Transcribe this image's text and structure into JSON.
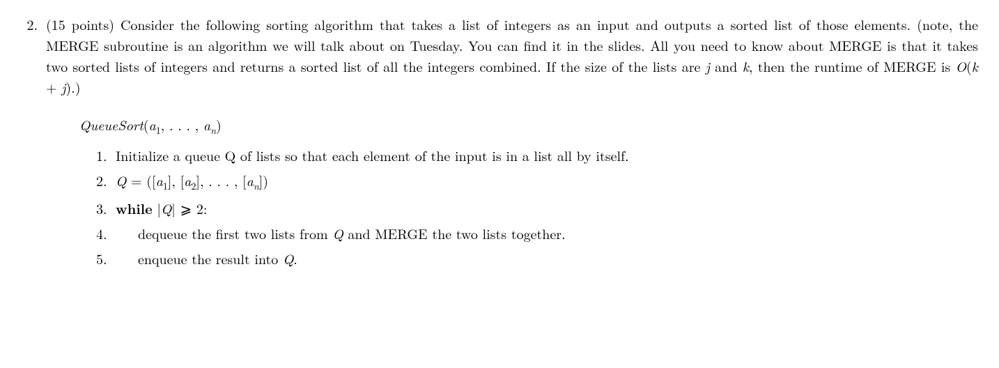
{
  "problem": {
    "number": "2.",
    "points": "(15 points)",
    "text_p1": "Consider the following sorting algorithm that takes a list of integers as an input and outputs a sorted list of those elements. (note, the MERGE subroutine is an algorithm we will talk about on Tuesday. You can find it in the slides. All you need to know about MERGE is that it takes two sorted lists of integers and returns a sorted list of all the integers combined. If the size of the lists are ",
    "text_p2": " and ",
    "text_p3": ", then the runtime of MERGE is ",
    "text_p4": ".)",
    "var_j": "j",
    "var_k": "k",
    "bigO": "O",
    "bigO_arg_open": "(",
    "bigO_k": "k",
    "bigO_plus": " + ",
    "bigO_j": "j",
    "bigO_arg_close": ")"
  },
  "algorithm": {
    "title_name": "QueueSort",
    "title_args_open": "(",
    "title_a": "a",
    "title_sub1": "1",
    "title_comma": ", . . . , ",
    "title_subn": "n",
    "title_args_close": ")",
    "step1": "Initialize a queue Q of lists so that each element of the input is in a list all by itself.",
    "step2_Q": "Q",
    "step2_eq": " = ",
    "step2_open": "([",
    "step2_a": "a",
    "step2_sub1": "1",
    "step2_mid1": "], [",
    "step2_sub2": "2",
    "step2_mid2": "], . . . , [",
    "step2_subn": "n",
    "step2_close": "])",
    "step3_while": "while",
    "step3_space": " ",
    "step3_absopen": "|",
    "step3_Q": "Q",
    "step3_absclose": "|",
    "step3_geq": " ⩾ 2:",
    "step4_text1": "dequeue the first two lists from ",
    "step4_Q": "Q",
    "step4_text2": " and MERGE the two lists together.",
    "step5_text1": "enqueue the result into ",
    "step5_Q": "Q",
    "step5_text2": "."
  }
}
